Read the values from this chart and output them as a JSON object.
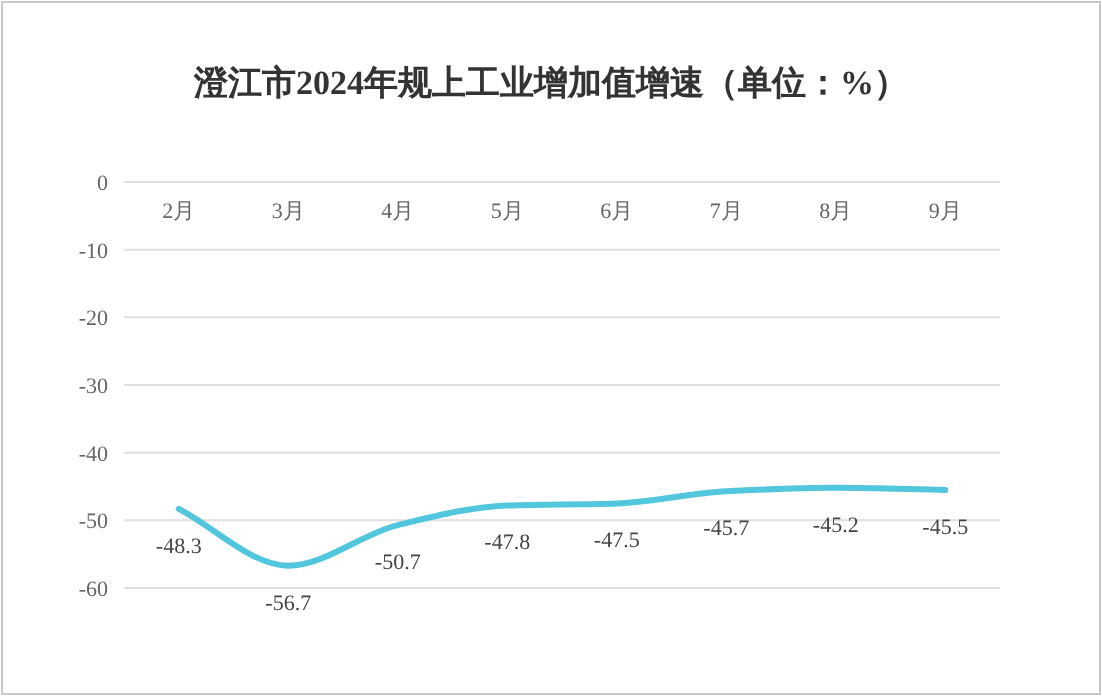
{
  "chart_data": {
    "type": "line",
    "title": "澄江市2024年规上工业增加值增速（单位：%）",
    "categories": [
      "2月",
      "3月",
      "4月",
      "5月",
      "6月",
      "7月",
      "8月",
      "9月"
    ],
    "series": [
      {
        "color": "#52c6dc",
        "values": [
          -48.3,
          -56.7,
          -50.7,
          -47.8,
          -47.5,
          -45.7,
          -45.2,
          -45.5
        ]
      }
    ],
    "ylim": [
      -60,
      0
    ],
    "yticks": [
      0,
      -10,
      -20,
      -30,
      -40,
      -50,
      -60
    ],
    "grid": "y",
    "data_labels": true,
    "marker": "none",
    "line_style": "solid"
  }
}
